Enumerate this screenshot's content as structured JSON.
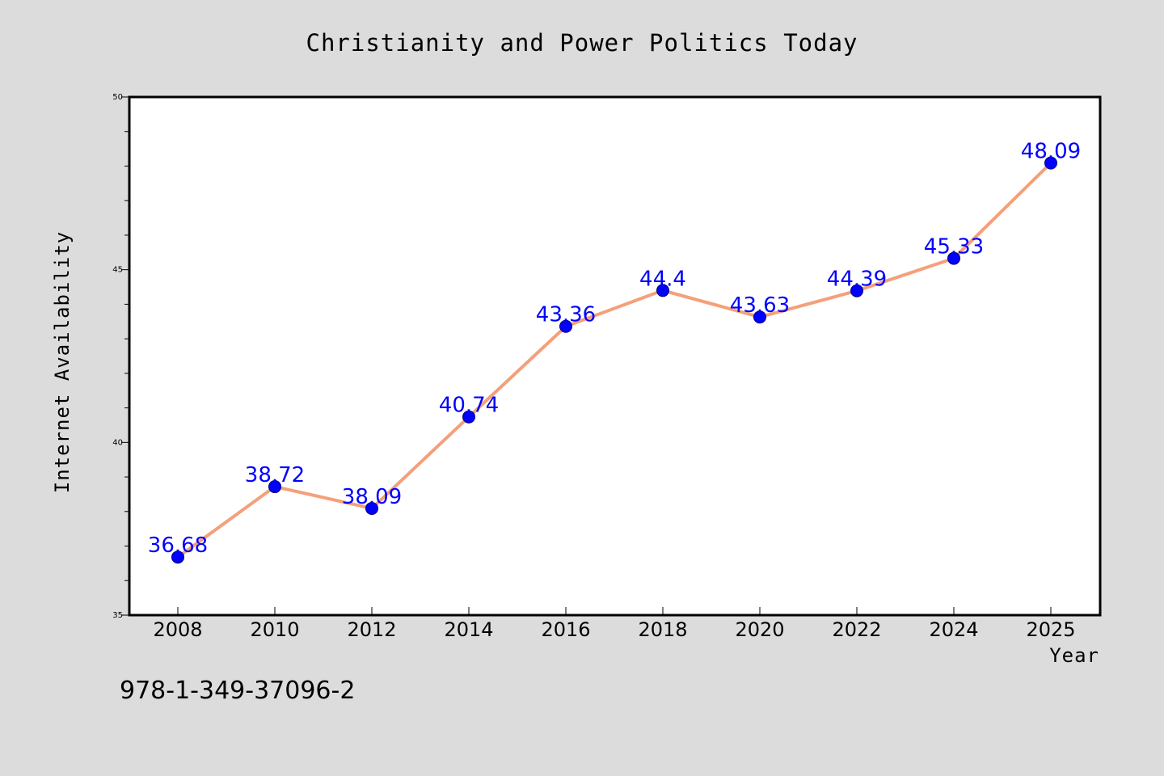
{
  "chart_data": {
    "type": "line",
    "title": "Christianity and Power Politics Today",
    "xlabel": "Year",
    "ylabel": "Internet Availability",
    "x": [
      "2008",
      "2010",
      "2012",
      "2014",
      "2016",
      "2018",
      "2020",
      "2022",
      "2024",
      "2025"
    ],
    "values": [
      36.68,
      38.72,
      38.09,
      40.74,
      43.36,
      44.4,
      43.63,
      44.39,
      45.33,
      48.09
    ],
    "data_labels": [
      "36.68",
      "38.72",
      "38.09",
      "40.74",
      "43.36",
      "44.4",
      "43.63",
      "44.39",
      "45.33",
      "48.09"
    ],
    "ylim": [
      35,
      50
    ],
    "y_ticks": [
      35,
      40,
      45,
      50
    ],
    "y_tick_labels": [
      "35",
      "40",
      "45",
      "50"
    ],
    "grid": false,
    "legend": "none",
    "colors": {
      "line": "#f4a07a",
      "marker": "#0000ff",
      "label": "#0000ff",
      "background": "#dcdcdc",
      "plot_background": "#ffffff"
    }
  },
  "footnote": "978-1-349-37096-2"
}
